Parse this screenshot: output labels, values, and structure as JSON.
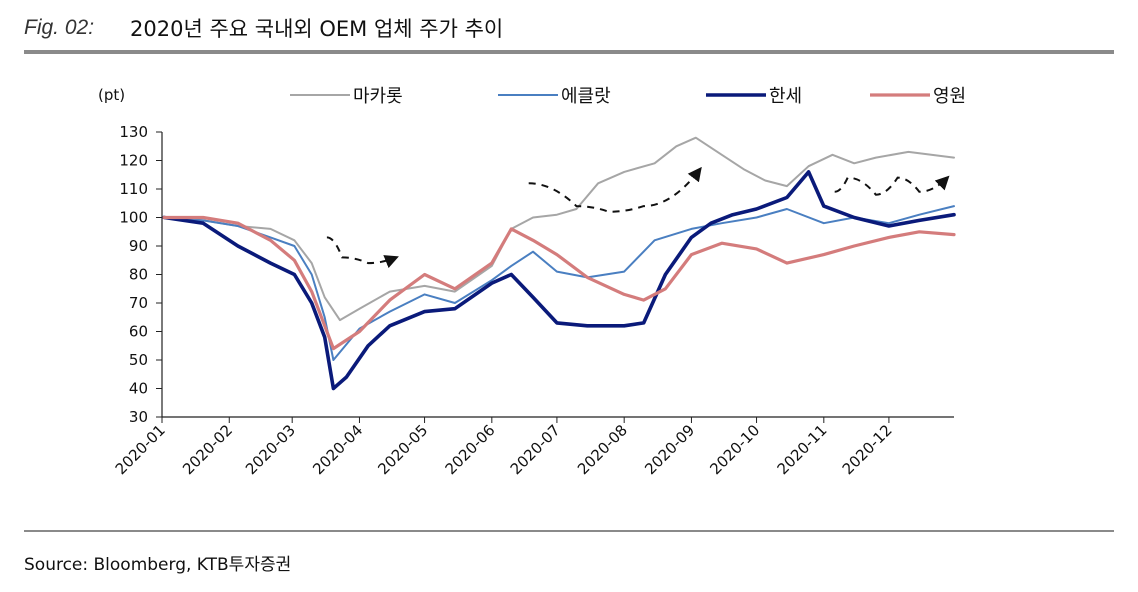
{
  "header": {
    "fig_label": "Fig. 02:",
    "title": "2020년 주요 국내외 OEM 업체 주가 추이"
  },
  "source": "Source: Bloomberg, KTB투자증권",
  "chart_data": {
    "type": "line",
    "ylabel": "(pt)",
    "ylim": [
      30,
      130
    ],
    "yticks": [
      30,
      40,
      50,
      60,
      70,
      80,
      90,
      100,
      110,
      120,
      130
    ],
    "xlim": [
      "2020-01-01",
      "2020-12-31"
    ],
    "xticks": [
      "2020-01",
      "2020-02",
      "2020-03",
      "2020-04",
      "2020-05",
      "2020-06",
      "2020-07",
      "2020-08",
      "2020-09",
      "2020-10",
      "2020-11",
      "2020-12"
    ],
    "legend_position": "top-center",
    "grid": false,
    "series": [
      {
        "name": "마카롯",
        "color": "#a6a6a6",
        "points": [
          [
            "2020-01-02",
            100
          ],
          [
            "2020-01-20",
            99
          ],
          [
            "2020-02-05",
            97
          ],
          [
            "2020-02-20",
            96
          ],
          [
            "2020-03-02",
            92
          ],
          [
            "2020-03-10",
            84
          ],
          [
            "2020-03-16",
            72
          ],
          [
            "2020-03-23",
            64
          ],
          [
            "2020-04-01",
            68
          ],
          [
            "2020-04-15",
            74
          ],
          [
            "2020-05-01",
            76
          ],
          [
            "2020-05-15",
            74
          ],
          [
            "2020-06-01",
            83
          ],
          [
            "2020-06-10",
            96
          ],
          [
            "2020-06-20",
            100
          ],
          [
            "2020-07-01",
            101
          ],
          [
            "2020-07-10",
            103
          ],
          [
            "2020-07-20",
            112
          ],
          [
            "2020-08-01",
            116
          ],
          [
            "2020-08-15",
            119
          ],
          [
            "2020-08-25",
            125
          ],
          [
            "2020-09-03",
            128
          ],
          [
            "2020-09-15",
            122
          ],
          [
            "2020-09-25",
            117
          ],
          [
            "2020-10-05",
            113
          ],
          [
            "2020-10-15",
            111
          ],
          [
            "2020-10-25",
            118
          ],
          [
            "2020-11-05",
            122
          ],
          [
            "2020-11-15",
            119
          ],
          [
            "2020-11-25",
            121
          ],
          [
            "2020-12-10",
            123
          ],
          [
            "2020-12-31",
            121
          ]
        ]
      },
      {
        "name": "에클랏",
        "color": "#4a7fc1",
        "points": [
          [
            "2020-01-02",
            100
          ],
          [
            "2020-01-20",
            99
          ],
          [
            "2020-02-05",
            97
          ],
          [
            "2020-02-20",
            93
          ],
          [
            "2020-03-02",
            90
          ],
          [
            "2020-03-10",
            80
          ],
          [
            "2020-03-16",
            65
          ],
          [
            "2020-03-20",
            50
          ],
          [
            "2020-04-01",
            61
          ],
          [
            "2020-04-15",
            67
          ],
          [
            "2020-05-01",
            73
          ],
          [
            "2020-05-15",
            70
          ],
          [
            "2020-06-01",
            78
          ],
          [
            "2020-06-10",
            83
          ],
          [
            "2020-06-20",
            88
          ],
          [
            "2020-07-01",
            81
          ],
          [
            "2020-07-15",
            79
          ],
          [
            "2020-08-01",
            81
          ],
          [
            "2020-08-15",
            92
          ],
          [
            "2020-09-01",
            96
          ],
          [
            "2020-09-15",
            98
          ],
          [
            "2020-10-01",
            100
          ],
          [
            "2020-10-15",
            103
          ],
          [
            "2020-11-01",
            98
          ],
          [
            "2020-11-15",
            100
          ],
          [
            "2020-12-01",
            98
          ],
          [
            "2020-12-15",
            101
          ],
          [
            "2020-12-31",
            104
          ]
        ]
      },
      {
        "name": "한세",
        "color": "#0a1a7a",
        "points": [
          [
            "2020-01-02",
            100
          ],
          [
            "2020-01-20",
            98
          ],
          [
            "2020-02-05",
            90
          ],
          [
            "2020-02-20",
            84
          ],
          [
            "2020-03-02",
            80
          ],
          [
            "2020-03-10",
            70
          ],
          [
            "2020-03-16",
            58
          ],
          [
            "2020-03-20",
            40
          ],
          [
            "2020-03-26",
            44
          ],
          [
            "2020-04-05",
            55
          ],
          [
            "2020-04-15",
            62
          ],
          [
            "2020-05-01",
            67
          ],
          [
            "2020-05-15",
            68
          ],
          [
            "2020-06-01",
            77
          ],
          [
            "2020-06-10",
            80
          ],
          [
            "2020-06-20",
            72
          ],
          [
            "2020-07-01",
            63
          ],
          [
            "2020-07-15",
            62
          ],
          [
            "2020-08-01",
            62
          ],
          [
            "2020-08-10",
            63
          ],
          [
            "2020-08-20",
            80
          ],
          [
            "2020-09-01",
            93
          ],
          [
            "2020-09-10",
            98
          ],
          [
            "2020-09-20",
            101
          ],
          [
            "2020-10-01",
            103
          ],
          [
            "2020-10-15",
            107
          ],
          [
            "2020-10-25",
            116
          ],
          [
            "2020-11-01",
            104
          ],
          [
            "2020-11-15",
            100
          ],
          [
            "2020-12-01",
            97
          ],
          [
            "2020-12-15",
            99
          ],
          [
            "2020-12-31",
            101
          ]
        ]
      },
      {
        "name": "영원",
        "color": "#d47c7c",
        "points": [
          [
            "2020-01-02",
            100
          ],
          [
            "2020-01-20",
            100
          ],
          [
            "2020-02-05",
            98
          ],
          [
            "2020-02-20",
            92
          ],
          [
            "2020-03-02",
            85
          ],
          [
            "2020-03-10",
            74
          ],
          [
            "2020-03-16",
            62
          ],
          [
            "2020-03-20",
            54
          ],
          [
            "2020-04-01",
            60
          ],
          [
            "2020-04-15",
            71
          ],
          [
            "2020-05-01",
            80
          ],
          [
            "2020-05-15",
            75
          ],
          [
            "2020-06-01",
            84
          ],
          [
            "2020-06-10",
            96
          ],
          [
            "2020-06-20",
            92
          ],
          [
            "2020-07-01",
            87
          ],
          [
            "2020-07-15",
            79
          ],
          [
            "2020-08-01",
            73
          ],
          [
            "2020-08-10",
            71
          ],
          [
            "2020-08-20",
            75
          ],
          [
            "2020-09-01",
            87
          ],
          [
            "2020-09-15",
            91
          ],
          [
            "2020-10-01",
            89
          ],
          [
            "2020-10-15",
            84
          ],
          [
            "2020-11-01",
            87
          ],
          [
            "2020-11-15",
            90
          ],
          [
            "2020-12-01",
            93
          ],
          [
            "2020-12-15",
            95
          ],
          [
            "2020-12-31",
            94
          ]
        ]
      }
    ],
    "annotations": [
      {
        "type": "dashed-arrow",
        "label": "",
        "points": [
          [
            "2020-03-17",
            93
          ],
          [
            "2020-03-24",
            86
          ],
          [
            "2020-04-05",
            84
          ],
          [
            "2020-04-18",
            86
          ]
        ]
      },
      {
        "type": "dashed-arrow",
        "label": "",
        "points": [
          [
            "2020-06-18",
            112
          ],
          [
            "2020-07-10",
            104
          ],
          [
            "2020-07-25",
            102
          ],
          [
            "2020-08-10",
            104
          ],
          [
            "2020-09-05",
            117
          ]
        ]
      },
      {
        "type": "dashed-arrow",
        "label": "",
        "points": [
          [
            "2020-11-06",
            109
          ],
          [
            "2020-11-12",
            114
          ],
          [
            "2020-11-25",
            108
          ],
          [
            "2020-12-05",
            114
          ],
          [
            "2020-12-15",
            109
          ],
          [
            "2020-12-28",
            114
          ]
        ]
      }
    ]
  }
}
